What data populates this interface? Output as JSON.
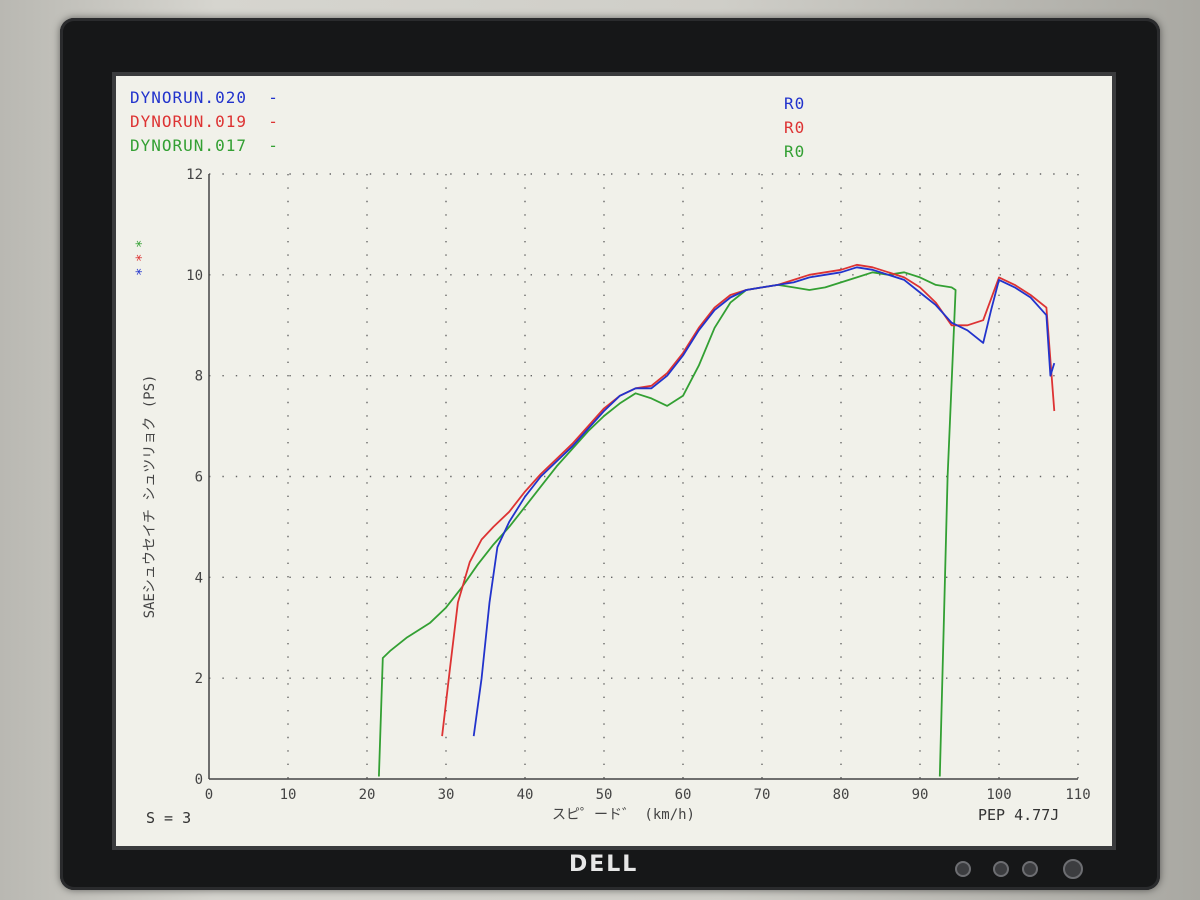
{
  "legend": [
    {
      "label": "DYNORUN.020  -",
      "tag": "R0",
      "color": "#2233cc"
    },
    {
      "label": "DYNORUN.019  -",
      "tag": "R0",
      "color": "#dd3333"
    },
    {
      "label": "DYNORUN.017  -",
      "tag": "R0",
      "color": "#33a033"
    }
  ],
  "footer": {
    "smoothing": "S = 3",
    "pep": "PEP  4.77J"
  },
  "brand": "DELL",
  "chart_data": {
    "type": "line",
    "xlabel": "スピ゜ード゛ (km/h)",
    "ylabel": "SAEシュウセイチ シュツリョク (PS)",
    "xlim": [
      0,
      110
    ],
    "ylim": [
      0,
      12
    ],
    "xticks": [
      0,
      10,
      20,
      30,
      40,
      50,
      60,
      70,
      80,
      90,
      100,
      110
    ],
    "yticks": [
      0,
      2,
      4,
      6,
      8,
      10,
      12
    ],
    "grid": true,
    "series": [
      {
        "name": "DYNORUN.020",
        "color": "#2233cc",
        "x": [
          33.5,
          34.5,
          35.5,
          36.5,
          38,
          40,
          42,
          44,
          46,
          48,
          50,
          52,
          54,
          56,
          58,
          60,
          62,
          64,
          66,
          68,
          70,
          72,
          74,
          76,
          78,
          80,
          82,
          84,
          86,
          88,
          90,
          92,
          94,
          96,
          98,
          99,
          100,
          102,
          104,
          106,
          106.5,
          107
        ],
        "y": [
          0.85,
          2.0,
          3.5,
          4.6,
          5.1,
          5.6,
          6.0,
          6.3,
          6.6,
          6.95,
          7.3,
          7.6,
          7.75,
          7.75,
          8.0,
          8.4,
          8.9,
          9.3,
          9.55,
          9.7,
          9.75,
          9.8,
          9.85,
          9.95,
          10.0,
          10.05,
          10.15,
          10.1,
          10.0,
          9.9,
          9.65,
          9.4,
          9.05,
          8.9,
          8.65,
          9.3,
          9.9,
          9.75,
          9.55,
          9.2,
          8.0,
          8.25
        ]
      },
      {
        "name": "DYNORUN.019",
        "color": "#dd3333",
        "x": [
          29.5,
          30.5,
          31.5,
          33,
          34.5,
          36,
          38,
          40,
          42,
          44,
          46,
          48,
          50,
          52,
          54,
          56,
          58,
          60,
          62,
          64,
          66,
          68,
          70,
          72,
          74,
          76,
          78,
          80,
          82,
          84,
          86,
          88,
          90,
          92,
          94,
          96,
          98,
          100,
          102,
          104,
          106,
          107
        ],
        "y": [
          0.85,
          2.2,
          3.5,
          4.3,
          4.75,
          5.0,
          5.3,
          5.7,
          6.05,
          6.35,
          6.65,
          7.0,
          7.35,
          7.6,
          7.75,
          7.8,
          8.05,
          8.45,
          8.95,
          9.35,
          9.6,
          9.7,
          9.75,
          9.8,
          9.9,
          10.0,
          10.05,
          10.1,
          10.2,
          10.15,
          10.05,
          9.95,
          9.75,
          9.45,
          9.0,
          9.0,
          9.1,
          9.95,
          9.8,
          9.6,
          9.35,
          7.3
        ]
      },
      {
        "name": "DYNORUN.017",
        "color": "#33a033",
        "x": [
          21.5,
          22,
          23,
          25,
          28,
          30,
          32,
          34,
          36,
          38,
          40,
          42,
          44,
          46,
          48,
          50,
          52,
          54,
          56,
          58,
          60,
          62,
          64,
          66,
          68,
          70,
          72,
          74,
          76,
          78,
          80,
          82,
          84,
          86,
          88,
          90,
          92,
          94,
          94.5,
          93.5,
          93,
          92.5
        ],
        "y": [
          0.05,
          2.4,
          2.55,
          2.8,
          3.1,
          3.4,
          3.8,
          4.25,
          4.65,
          5.0,
          5.4,
          5.8,
          6.2,
          6.55,
          6.9,
          7.2,
          7.45,
          7.65,
          7.55,
          7.4,
          7.6,
          8.2,
          8.95,
          9.45,
          9.7,
          9.75,
          9.8,
          9.75,
          9.7,
          9.75,
          9.85,
          9.95,
          10.05,
          10.0,
          10.05,
          9.95,
          9.8,
          9.75,
          9.7,
          6.0,
          3.0,
          0.05
        ]
      }
    ]
  }
}
